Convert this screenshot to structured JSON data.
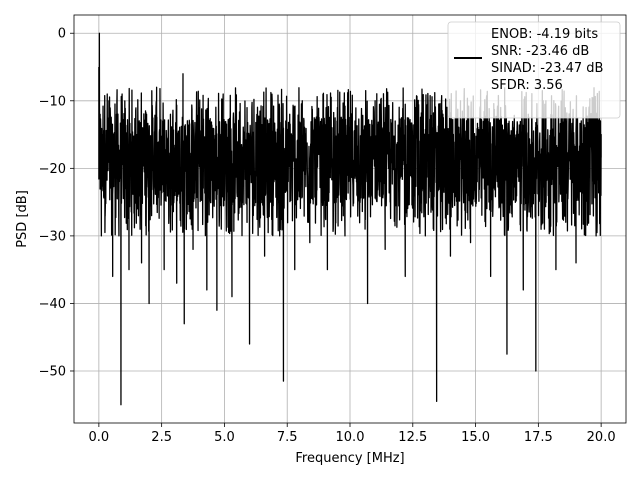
{
  "chart_data": {
    "type": "line",
    "title": "",
    "xlabel": "Frequency [MHz]",
    "ylabel": "PSD [dB]",
    "xlim": [
      -0.99,
      20.99
    ],
    "ylim": [
      -57.7,
      2.7
    ],
    "xticks": [
      0.0,
      2.5,
      5.0,
      7.5,
      10.0,
      12.5,
      15.0,
      17.5,
      20.0
    ],
    "xtick_labels": [
      "0.0",
      "2.5",
      "5.0",
      "7.5",
      "10.0",
      "12.5",
      "15.0",
      "17.5",
      "20.0"
    ],
    "yticks": [
      0,
      -10,
      -20,
      -30,
      -40,
      -50
    ],
    "ytick_labels": [
      "0",
      "−10",
      "−20",
      "−30",
      "−40",
      "−50"
    ],
    "grid": true,
    "legend_position": "top-right",
    "series": [
      {
        "name": "ENOB: -4.19 bits\nSNR: -23.46 dB\nSINAD: -23.47 dB\nSFDR: 3.56",
        "legend_lines": [
          "ENOB: -4.19 bits",
          "SNR: -23.46 dB",
          "SINAD: -23.47 dB",
          "SFDR: 3.56"
        ],
        "color": "#000000",
        "x_range": [
          0.0,
          20.0
        ],
        "typical_range_db": [
          -30,
          -8
        ],
        "x": [
          0.0,
          0.02,
          0.05,
          0.1,
          0.15,
          0.25,
          0.4,
          0.55,
          0.7,
          0.8,
          0.88,
          1.0,
          1.2,
          1.5,
          1.7,
          1.9,
          2.0,
          2.3,
          2.6,
          2.85,
          3.1,
          3.35,
          3.4,
          3.55,
          3.75,
          4.0,
          4.3,
          4.5,
          4.7,
          4.95,
          5.3,
          5.6,
          5.9,
          6.0,
          6.3,
          6.6,
          6.9,
          7.2,
          7.35,
          7.6,
          7.8,
          8.1,
          8.4,
          8.8,
          9.1,
          9.5,
          9.8,
          10.2,
          10.6,
          10.7,
          11.0,
          11.4,
          11.8,
          12.2,
          12.6,
          13.0,
          13.3,
          13.45,
          13.7,
          14.0,
          14.4,
          14.8,
          15.2,
          15.6,
          16.0,
          16.25,
          16.5,
          16.9,
          17.1,
          17.4,
          17.8,
          18.2,
          18.6,
          19.0,
          19.4,
          19.8,
          20.0
        ],
        "y": [
          -5.0,
          0.0,
          -12.0,
          -30.0,
          -15.0,
          -25.0,
          -10.0,
          -36.0,
          -12.0,
          -30.0,
          -55.0,
          -18.0,
          -35.0,
          -15.0,
          -34.0,
          -12.0,
          -40.0,
          -8.0,
          -35.0,
          -12.0,
          -37.0,
          -6.0,
          -43.0,
          -15.0,
          -32.0,
          -11.0,
          -38.0,
          -16.0,
          -41.0,
          -9.0,
          -39.0,
          -12.0,
          -28.0,
          -46.0,
          -14.0,
          -33.0,
          -10.0,
          -30.0,
          -51.5,
          -12.0,
          -35.0,
          -10.0,
          -31.0,
          -14.0,
          -35.0,
          -11.0,
          -30.0,
          -13.0,
          -29.0,
          -40.0,
          -10.0,
          -32.0,
          -13.0,
          -36.0,
          -11.0,
          -30.0,
          -14.0,
          -54.5,
          -12.0,
          -33.0,
          -10.0,
          -31.0,
          -13.0,
          -36.0,
          -11.0,
          -47.5,
          -14.0,
          -38.0,
          -12.0,
          -50.0,
          -10.0,
          -35.0,
          -13.0,
          -34.0,
          -11.0,
          -30.0,
          -15.0
        ]
      }
    ]
  }
}
